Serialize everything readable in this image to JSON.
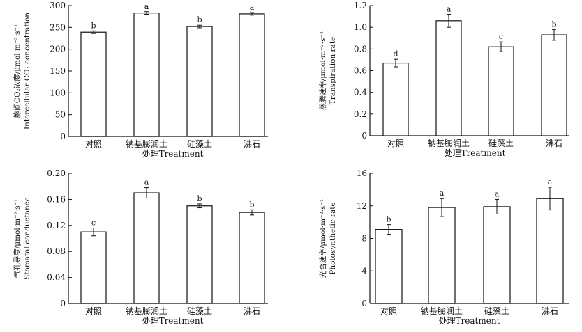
{
  "chart_data": [
    {
      "id": "ci",
      "type": "bar",
      "categories": [
        "对照",
        "钠基膨润土",
        "硅藻土",
        "沸石"
      ],
      "values": [
        239,
        283,
        252,
        281
      ],
      "errors": [
        3,
        3,
        3,
        3
      ],
      "letters": [
        "b",
        "a",
        "b",
        "a"
      ],
      "ylim": [
        0,
        300
      ],
      "yticks": [
        0,
        50,
        100,
        150,
        200,
        250,
        300
      ],
      "ytick_labels": [
        "0",
        "50",
        "100",
        "150",
        "200",
        "250",
        "300"
      ],
      "xlabel": "处理Treatment",
      "ylabel_line1": "胞间CO₂浓度/μmol·m⁻²·s⁻¹",
      "ylabel_line2": "Intercellular CO₂ concentration",
      "bar_color": "#ffffff",
      "axis_color": "#111111"
    },
    {
      "id": "tr",
      "type": "bar",
      "categories": [
        "对照",
        "钠基膨润土",
        "硅藻土",
        "沸石"
      ],
      "values": [
        0.67,
        1.06,
        0.82,
        0.93
      ],
      "errors": [
        0.035,
        0.06,
        0.045,
        0.05
      ],
      "letters": [
        "d",
        "a",
        "c",
        "b"
      ],
      "ylim": [
        0,
        1.2
      ],
      "yticks": [
        0,
        0.2,
        0.4,
        0.6,
        0.8,
        1.0,
        1.2
      ],
      "ytick_labels": [
        "0",
        "0.2",
        "0.4",
        "0.6",
        "0.8",
        "1.0",
        "1.2"
      ],
      "xlabel": "处理Treatment",
      "ylabel_line1": "蒸腾速率/μmol·m⁻²·s⁻¹",
      "ylabel_line2": "Transpiration rate",
      "bar_color": "#ffffff",
      "axis_color": "#111111"
    },
    {
      "id": "gs",
      "type": "bar",
      "categories": [
        "对照",
        "钠基膨润土",
        "硅藻土",
        "沸石"
      ],
      "values": [
        0.11,
        0.17,
        0.15,
        0.14
      ],
      "errors": [
        0.006,
        0.008,
        0.003,
        0.004
      ],
      "letters": [
        "c",
        "a",
        "b",
        "b"
      ],
      "ylim": [
        0,
        0.2
      ],
      "yticks": [
        0,
        0.04,
        0.08,
        0.12,
        0.16,
        0.2
      ],
      "ytick_labels": [
        "0",
        "0.04",
        "0.08",
        "0.12",
        "0.16",
        "0.20"
      ],
      "xlabel": "处理Treatment",
      "ylabel_line1": "气孔导度/μmol·m⁻²·s⁻¹",
      "ylabel_line2": "Stomatal conductance",
      "bar_color": "#ffffff",
      "axis_color": "#111111"
    },
    {
      "id": "pn",
      "type": "bar",
      "categories": [
        "对照",
        "钠基膨润土",
        "硅藻土",
        "沸石"
      ],
      "values": [
        9.1,
        11.8,
        11.9,
        12.9
      ],
      "errors": [
        0.6,
        1.1,
        0.9,
        1.4
      ],
      "letters": [
        "b",
        "a",
        "a",
        "a"
      ],
      "ylim": [
        0,
        16
      ],
      "yticks": [
        0,
        4,
        8,
        12,
        16
      ],
      "ytick_labels": [
        "0",
        "4",
        "8",
        "12",
        "16"
      ],
      "xlabel": "处理Treatment",
      "ylabel_line1": "光合速率/μmol·m⁻²·s⁻¹",
      "ylabel_line2": "Photosynthetic rate",
      "bar_color": "#ffffff",
      "axis_color": "#111111"
    }
  ]
}
